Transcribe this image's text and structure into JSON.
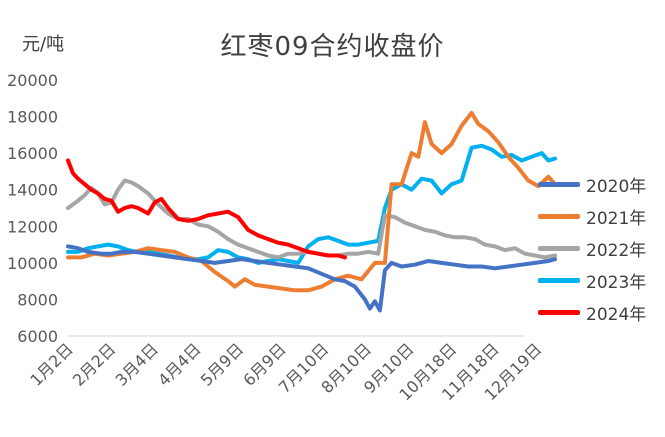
{
  "chart_data": {
    "type": "line",
    "title": "红枣09合约收盘价",
    "ylabel": "元/吨",
    "xlabel": "",
    "ylim": [
      6000,
      20000
    ],
    "yticks": [
      6000,
      8000,
      10000,
      12000,
      14000,
      16000,
      18000,
      20000
    ],
    "categories": [
      "1月2日",
      "2月2日",
      "3月4日",
      "4月4日",
      "5月9日",
      "6月9日",
      "7月10日",
      "8月10日",
      "9月10日",
      "10月18日",
      "11月18日",
      "12月19日"
    ],
    "grid": false,
    "legend_position": "right",
    "series": [
      {
        "name": "2020年",
        "color": "#4472C4",
        "points": [
          [
            0,
            10900
          ],
          [
            0.3,
            10800
          ],
          [
            0.6,
            10600
          ],
          [
            1.0,
            10500
          ],
          [
            1.3,
            10500
          ],
          [
            1.6,
            10600
          ],
          [
            2.0,
            10600
          ],
          [
            2.4,
            10500
          ],
          [
            2.8,
            10400
          ],
          [
            3.2,
            10300
          ],
          [
            3.6,
            10200
          ],
          [
            4.0,
            10100
          ],
          [
            4.4,
            10000
          ],
          [
            4.8,
            10100
          ],
          [
            5.2,
            10200
          ],
          [
            5.6,
            10100
          ],
          [
            6.0,
            10000
          ],
          [
            6.4,
            9900
          ],
          [
            6.8,
            9800
          ],
          [
            7.2,
            9700
          ],
          [
            7.6,
            9400
          ],
          [
            8.0,
            9100
          ],
          [
            8.3,
            9000
          ],
          [
            8.6,
            8700
          ],
          [
            8.9,
            8000
          ],
          [
            9.05,
            7500
          ],
          [
            9.2,
            7900
          ],
          [
            9.35,
            7400
          ],
          [
            9.5,
            9600
          ],
          [
            9.7,
            10000
          ],
          [
            10.0,
            9800
          ],
          [
            10.4,
            9900
          ],
          [
            10.8,
            10100
          ],
          [
            11.2,
            10000
          ],
          [
            11.6,
            9900
          ],
          [
            12.0,
            9800
          ],
          [
            12.4,
            9800
          ],
          [
            12.8,
            9700
          ],
          [
            13.2,
            9800
          ],
          [
            13.6,
            9900
          ],
          [
            14.0,
            10000
          ],
          [
            14.4,
            10100
          ],
          [
            14.6,
            10200
          ]
        ]
      },
      {
        "name": "2021年",
        "color": "#ED7D31",
        "points": [
          [
            0,
            10300
          ],
          [
            0.4,
            10300
          ],
          [
            0.8,
            10500
          ],
          [
            1.2,
            10400
          ],
          [
            1.6,
            10500
          ],
          [
            2.0,
            10600
          ],
          [
            2.4,
            10800
          ],
          [
            2.8,
            10700
          ],
          [
            3.2,
            10600
          ],
          [
            3.6,
            10300
          ],
          [
            4.0,
            10100
          ],
          [
            4.4,
            9500
          ],
          [
            4.8,
            9000
          ],
          [
            5.0,
            8700
          ],
          [
            5.3,
            9100
          ],
          [
            5.6,
            8800
          ],
          [
            6.0,
            8700
          ],
          [
            6.4,
            8600
          ],
          [
            6.8,
            8500
          ],
          [
            7.2,
            8500
          ],
          [
            7.6,
            8700
          ],
          [
            8.0,
            9100
          ],
          [
            8.4,
            9300
          ],
          [
            8.8,
            9100
          ],
          [
            9.2,
            10000
          ],
          [
            9.5,
            10000
          ],
          [
            9.7,
            14300
          ],
          [
            10.0,
            14300
          ],
          [
            10.3,
            16000
          ],
          [
            10.5,
            15800
          ],
          [
            10.7,
            17700
          ],
          [
            10.9,
            16500
          ],
          [
            11.2,
            16000
          ],
          [
            11.5,
            16500
          ],
          [
            11.8,
            17500
          ],
          [
            12.1,
            18200
          ],
          [
            12.3,
            17600
          ],
          [
            12.6,
            17200
          ],
          [
            12.9,
            16600
          ],
          [
            13.2,
            15800
          ],
          [
            13.5,
            15200
          ],
          [
            13.8,
            14500
          ],
          [
            14.1,
            14200
          ],
          [
            14.4,
            14700
          ],
          [
            14.6,
            14300
          ]
        ]
      },
      {
        "name": "2022年",
        "color": "#A5A5A5",
        "points": [
          [
            0,
            13000
          ],
          [
            0.3,
            13400
          ],
          [
            0.5,
            13700
          ],
          [
            0.7,
            14100
          ],
          [
            0.9,
            13800
          ],
          [
            1.1,
            13200
          ],
          [
            1.3,
            13300
          ],
          [
            1.5,
            14000
          ],
          [
            1.7,
            14500
          ],
          [
            1.9,
            14400
          ],
          [
            2.1,
            14200
          ],
          [
            2.4,
            13800
          ],
          [
            2.7,
            13200
          ],
          [
            3.0,
            12700
          ],
          [
            3.3,
            12400
          ],
          [
            3.6,
            12400
          ],
          [
            3.9,
            12100
          ],
          [
            4.2,
            12000
          ],
          [
            4.5,
            11700
          ],
          [
            4.8,
            11300
          ],
          [
            5.1,
            11000
          ],
          [
            5.4,
            10800
          ],
          [
            5.7,
            10600
          ],
          [
            6.0,
            10400
          ],
          [
            6.3,
            10300
          ],
          [
            6.6,
            10500
          ],
          [
            6.9,
            10500
          ],
          [
            7.2,
            10600
          ],
          [
            7.5,
            10500
          ],
          [
            7.8,
            10400
          ],
          [
            8.1,
            10400
          ],
          [
            8.4,
            10500
          ],
          [
            8.7,
            10500
          ],
          [
            9.0,
            10600
          ],
          [
            9.3,
            10500
          ],
          [
            9.5,
            12600
          ],
          [
            9.8,
            12500
          ],
          [
            10.1,
            12200
          ],
          [
            10.4,
            12000
          ],
          [
            10.7,
            11800
          ],
          [
            11.0,
            11700
          ],
          [
            11.3,
            11500
          ],
          [
            11.6,
            11400
          ],
          [
            11.9,
            11400
          ],
          [
            12.2,
            11300
          ],
          [
            12.5,
            11000
          ],
          [
            12.8,
            10900
          ],
          [
            13.1,
            10700
          ],
          [
            13.4,
            10800
          ],
          [
            13.7,
            10500
          ],
          [
            14.0,
            10400
          ],
          [
            14.3,
            10300
          ],
          [
            14.6,
            10400
          ]
        ]
      },
      {
        "name": "2023年",
        "color": "#00B0F0",
        "points": [
          [
            0,
            10600
          ],
          [
            0.3,
            10600
          ],
          [
            0.6,
            10800
          ],
          [
            0.9,
            10900
          ],
          [
            1.2,
            11000
          ],
          [
            1.5,
            10900
          ],
          [
            1.8,
            10700
          ],
          [
            2.1,
            10600
          ],
          [
            2.4,
            10600
          ],
          [
            2.7,
            10500
          ],
          [
            3.0,
            10400
          ],
          [
            3.3,
            10300
          ],
          [
            3.6,
            10200
          ],
          [
            3.9,
            10200
          ],
          [
            4.2,
            10300
          ],
          [
            4.5,
            10700
          ],
          [
            4.8,
            10600
          ],
          [
            5.1,
            10300
          ],
          [
            5.4,
            10200
          ],
          [
            5.7,
            10000
          ],
          [
            6.0,
            10100
          ],
          [
            6.3,
            10200
          ],
          [
            6.6,
            10100
          ],
          [
            6.9,
            10000
          ],
          [
            7.2,
            10900
          ],
          [
            7.5,
            11300
          ],
          [
            7.8,
            11400
          ],
          [
            8.1,
            11200
          ],
          [
            8.4,
            11000
          ],
          [
            8.7,
            11000
          ],
          [
            9.0,
            11100
          ],
          [
            9.3,
            11200
          ],
          [
            9.5,
            13000
          ],
          [
            9.7,
            14000
          ],
          [
            10.0,
            14300
          ],
          [
            10.3,
            14000
          ],
          [
            10.6,
            14600
          ],
          [
            10.9,
            14500
          ],
          [
            11.2,
            13800
          ],
          [
            11.5,
            14300
          ],
          [
            11.8,
            14500
          ],
          [
            12.1,
            16300
          ],
          [
            12.4,
            16400
          ],
          [
            12.7,
            16200
          ],
          [
            13.0,
            15800
          ],
          [
            13.3,
            15900
          ],
          [
            13.6,
            15600
          ],
          [
            13.9,
            15800
          ],
          [
            14.2,
            16000
          ],
          [
            14.4,
            15600
          ],
          [
            14.6,
            15700
          ]
        ]
      },
      {
        "name": "2024年",
        "color": "#FF0000",
        "points": [
          [
            0,
            15600
          ],
          [
            0.15,
            14900
          ],
          [
            0.3,
            14600
          ],
          [
            0.5,
            14300
          ],
          [
            0.7,
            14000
          ],
          [
            0.9,
            13800
          ],
          [
            1.1,
            13500
          ],
          [
            1.3,
            13400
          ],
          [
            1.5,
            12800
          ],
          [
            1.7,
            13000
          ],
          [
            1.9,
            13100
          ],
          [
            2.1,
            13000
          ],
          [
            2.4,
            12700
          ],
          [
            2.6,
            13300
          ],
          [
            2.8,
            13500
          ],
          [
            3.0,
            13000
          ],
          [
            3.3,
            12400
          ],
          [
            3.6,
            12300
          ],
          [
            3.9,
            12400
          ],
          [
            4.2,
            12600
          ],
          [
            4.5,
            12700
          ],
          [
            4.8,
            12800
          ],
          [
            5.1,
            12500
          ],
          [
            5.4,
            11800
          ],
          [
            5.7,
            11500
          ],
          [
            6.0,
            11300
          ],
          [
            6.3,
            11100
          ],
          [
            6.6,
            11000
          ],
          [
            6.9,
            10800
          ],
          [
            7.2,
            10600
          ],
          [
            7.5,
            10500
          ],
          [
            7.8,
            10400
          ],
          [
            8.1,
            10400
          ],
          [
            8.3,
            10300
          ]
        ]
      }
    ]
  }
}
